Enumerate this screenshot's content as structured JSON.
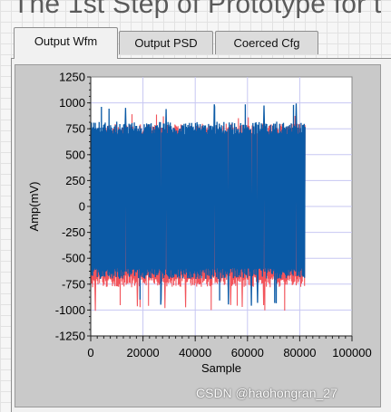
{
  "window": {
    "title": "The 1st Step of Prototype for t"
  },
  "tabs": [
    {
      "label": "Output Wfm",
      "active": true
    },
    {
      "label": "Output PSD",
      "active": false
    },
    {
      "label": "Coerced Cfg",
      "active": false
    }
  ],
  "watermark": "CSDN @haohongran_27",
  "colors": {
    "series_primary": "#0b5aa6",
    "series_secondary": "#f2545b",
    "plot_background": "#ffffff",
    "grid": "#c7c7f2"
  },
  "chart_data": {
    "type": "line",
    "xlabel": "Sample",
    "ylabel": "Amp(mV)",
    "xlim": [
      0,
      100000
    ],
    "ylim": [
      -1250,
      1250
    ],
    "x_ticks": [
      0,
      20000,
      40000,
      60000,
      80000,
      100000
    ],
    "x_tick_labels": [
      "0",
      "20000",
      "40000",
      "60000",
      "80000",
      "100000"
    ],
    "y_ticks": [
      -1250,
      -1000,
      -750,
      -500,
      -250,
      0,
      250,
      500,
      750,
      1000,
      1250
    ],
    "y_tick_labels": [
      "-1250",
      "-1000",
      "-750",
      "-500",
      "-250",
      "0",
      "250",
      "500",
      "750",
      "1000",
      "1250"
    ],
    "grid": true,
    "legend": "none",
    "series": [
      {
        "color": "#f2545b",
        "x_range": [
          0,
          82000
        ],
        "typical_envelope": [
          -780,
          800
        ],
        "peak_max": 900,
        "peak_min": -1010
      },
      {
        "color": "#0b5aa6",
        "x_range": [
          0,
          82000
        ],
        "typical_envelope": [
          -700,
          820
        ],
        "peak_max": 1000,
        "peak_min": -960
      }
    ]
  }
}
